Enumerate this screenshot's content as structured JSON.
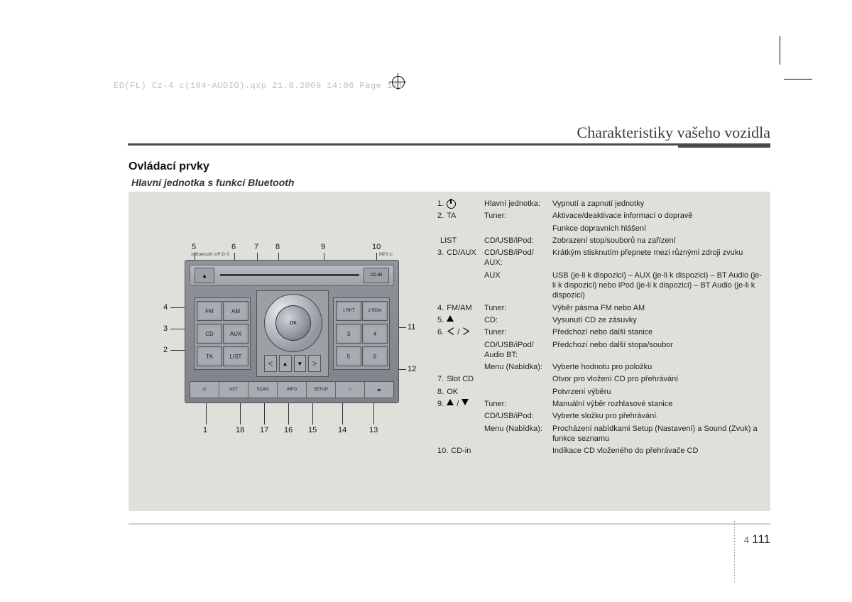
{
  "meta": {
    "header_stamp": "ED(FL) Cz-4 c(104~AUDIO).qxp  21.8.2009  14:06  Page 111"
  },
  "page": {
    "chapter": "Charakteristiky vašeho vozidla",
    "h1": "Ovládací prvky",
    "h2": "Hlavní jednotka s funkcí Bluetooth",
    "section_num": "4",
    "page_num": "111"
  },
  "radio": {
    "logos_left": "◎Bluetooth   ⊙R·D·S",
    "logos_right": "MP3   ⊙",
    "eject": "▲",
    "cdin": "CD-IN",
    "left_btns": [
      [
        "FM",
        "AM"
      ],
      [
        "CD",
        "AUX"
      ],
      [
        "TA",
        "LIST"
      ]
    ],
    "right_btns": [
      [
        "1 RPT",
        "2 RDM"
      ],
      [
        "3",
        "4"
      ],
      [
        "5",
        "6"
      ]
    ],
    "ok": "OK",
    "bottom": [
      "⏻",
      "AST",
      "SCAN",
      "INFO",
      "SETUP",
      "♫",
      "⏏"
    ]
  },
  "callouts": {
    "top": [
      "5",
      "6",
      "7",
      "8",
      "9",
      "10"
    ],
    "left": [
      "4",
      "3",
      "2"
    ],
    "right": [
      "11",
      "12"
    ],
    "bottom": [
      "1",
      "18",
      "17",
      "16",
      "15",
      "14",
      "13"
    ]
  },
  "items": [
    {
      "num": "1.",
      "sym": "pwr",
      "c2": "Hlavní jednotka:",
      "c3": "Vypnutí a zapnutí jednotky"
    },
    {
      "num": "2.",
      "sym_text": "TA",
      "c2": "Tuner:",
      "c3": "Aktivace/deaktivace informací o dopravě"
    },
    {
      "num": "",
      "sym_text": "",
      "c2": "",
      "c3": "Funkce dopravních hlášení"
    },
    {
      "num": "",
      "sym_text": "LIST",
      "c2": "CD/USB/iPod:",
      "c3": "Zobrazení stop/souborů na zařízení"
    },
    {
      "num": "3.",
      "sym_text": "CD/AUX",
      "c2": "CD/USB/iPod/ AUX:",
      "c3": "Krátkým stisknutím přepnete mezi různými zdroji zvuku"
    },
    {
      "num": "",
      "sym_text": "",
      "c2": "AUX",
      "c3": "USB (je-li k dispozici) – AUX (je-li k dispozici) – BT Audio (je-li k dispozici) nebo iPod (je-li k dispozici) – BT Audio (je-li k dispozici)"
    },
    {
      "num": "4.",
      "sym_text": "FM/AM",
      "c2": "Tuner:",
      "c3": "Výběr pásma FM nebo AM"
    },
    {
      "num": "5.",
      "sym": "tri-up",
      "c2": "CD:",
      "c3": "Vysunutí CD ze zásuvky"
    },
    {
      "num": "6.",
      "sym": "chev",
      "c2": "Tuner:",
      "c3": "Předchozí nebo další stanice"
    },
    {
      "num": "",
      "sym_text": "",
      "c2": "CD/USB/iPod/ Audio BT:",
      "c3": "Předchozí nebo další stopa/soubor"
    },
    {
      "num": "",
      "sym_text": "",
      "c2": "Menu (Nabídka):",
      "c3": "Vyberte hodnotu pro položku"
    },
    {
      "num": "7.",
      "sym_text": "Slot CD",
      "c2": "",
      "c3": "Otvor pro vložení CD pro přehrávání"
    },
    {
      "num": "8.",
      "sym_text": "OK",
      "c2": "",
      "c3": "Potvrzení výběru"
    },
    {
      "num": "9.",
      "sym": "tri-both",
      "c2": "Tuner:",
      "c3": "Manuální výběr rozhlasové stanice"
    },
    {
      "num": "",
      "sym_text": "",
      "c2": "CD/USB/iPod:",
      "c3": "Vyberte složku pro přehrávání."
    },
    {
      "num": "",
      "sym_text": "",
      "c2": "Menu (Nabídka):",
      "c3": "Procházení nabídkami Setup (Nastavení) a Sound (Zvuk) a funkce seznamu"
    },
    {
      "num": "10.",
      "sym_text": "CD-in",
      "c2": "",
      "c3": "Indikace CD vloženého do přehrávače CD"
    }
  ],
  "colors": {
    "box_bg": "#e0e0da",
    "chapter_rule": "#4a4a4a"
  }
}
